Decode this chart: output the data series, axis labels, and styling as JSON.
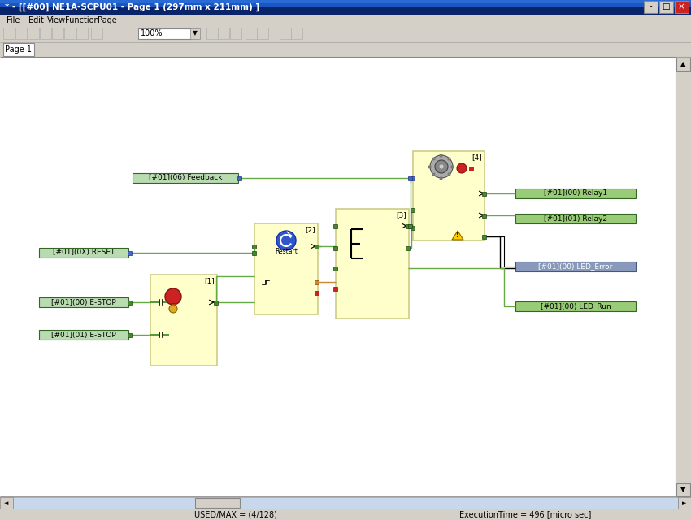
{
  "title_bar": "* - [[#00] NE1A-SCPU01 - Page 1 (297mm x 211mm) ]",
  "menu_items": [
    "File",
    "Edit",
    "View",
    "Function",
    "Page"
  ],
  "zoom_level": "100%",
  "tab_label": "Page 1",
  "status_left": "USED/MAX = (4/128)",
  "status_right": "ExecutionTime = 496 [micro sec]",
  "bg_color": "#d4d0c8",
  "title_bar_color": "#0a246a",
  "canvas_bg": "#ffffff",
  "toolbar_bg": "#d4d0c8",
  "menu_bg": "#d4d0c8",
  "status_bg": "#d4d0c8",
  "wire_color": "#66aa44",
  "wire_color_dark": "#336622",
  "label_green": "#99cc88",
  "label_green_border": "#447733",
  "label_purple": "#8888bb",
  "label_text": "#000000",
  "yellow_block": "#ffffcc",
  "yellow_border": "#cccc88",
  "connector_blue": "#4466aa",
  "connector_green": "#336622",
  "connector_red": "#cc2222",
  "connector_orange": "#cc8844"
}
